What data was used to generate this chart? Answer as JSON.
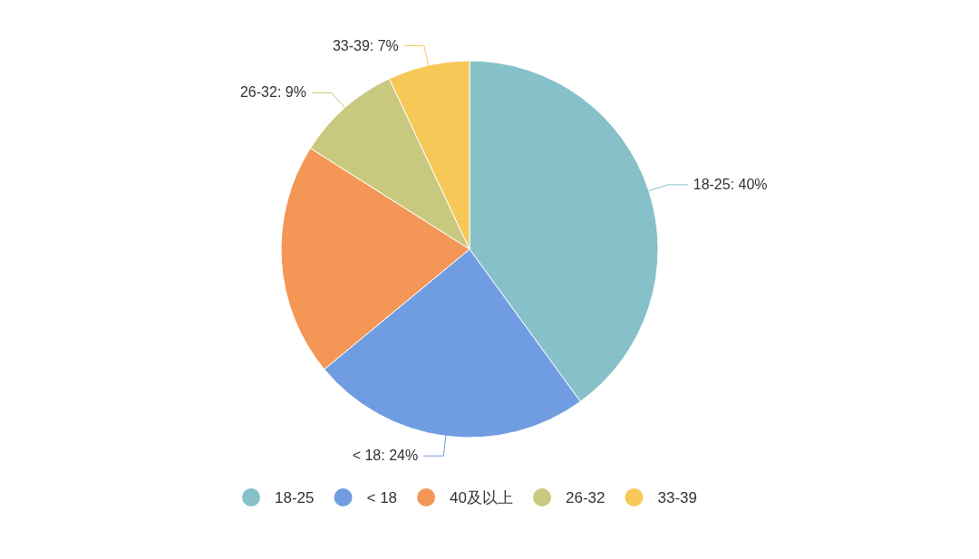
{
  "chart_data": {
    "type": "pie",
    "categories": [
      "18-25",
      "< 18",
      "40及以上",
      "26-32",
      "33-39"
    ],
    "values": [
      40,
      24,
      20,
      9,
      7
    ],
    "colors": [
      "#86c1c9",
      "#709de1",
      "#f39656",
      "#c8c97f",
      "#f5c858"
    ],
    "value_labels": [
      "18-25: 40%",
      "< 18: 24%",
      null,
      "26-32: 9%",
      "33-39: 7%"
    ],
    "legend": "bottom"
  }
}
